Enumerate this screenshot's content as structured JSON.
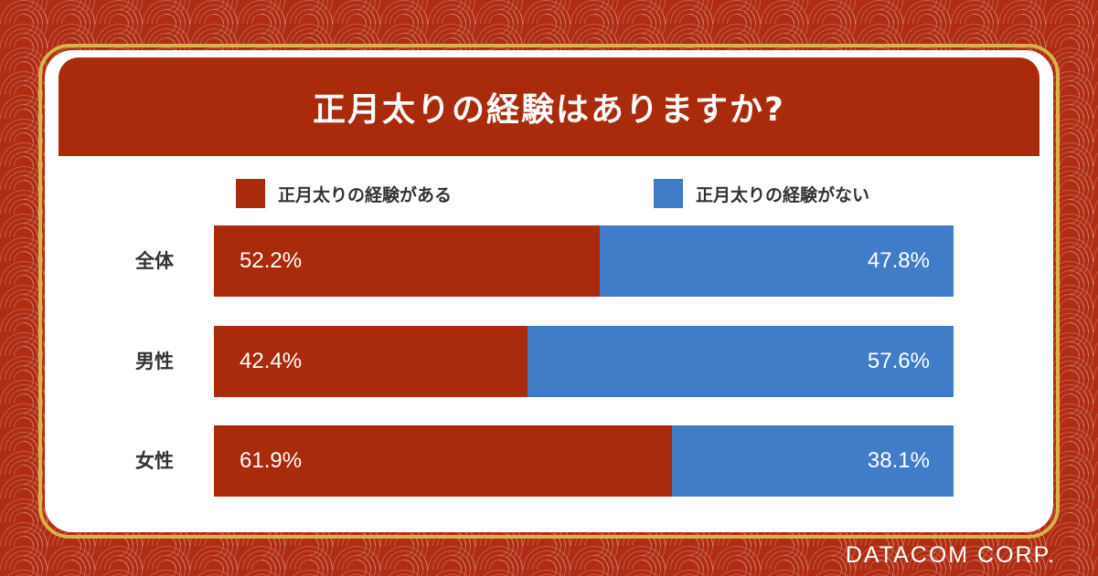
{
  "chart_data": {
    "type": "bar",
    "stacked": true,
    "orientation": "horizontal",
    "title": "正月太りの経験はありますか?",
    "categories": [
      "全体",
      "男性",
      "女性"
    ],
    "series": [
      {
        "name": "正月太りの経験がある",
        "color": "#aa2a0c",
        "values": [
          52.2,
          42.4,
          61.9
        ],
        "labels": [
          "52.2%",
          "42.4%",
          "61.9%"
        ]
      },
      {
        "name": "正月太りの経験がない",
        "color": "#417cc8",
        "values": [
          47.8,
          57.6,
          38.1
        ],
        "labels": [
          "47.8%",
          "57.6%",
          "38.1%"
        ]
      }
    ],
    "xlim": [
      0,
      100
    ],
    "legend": "top",
    "grid": false
  },
  "brand": "DATACOM CORP."
}
